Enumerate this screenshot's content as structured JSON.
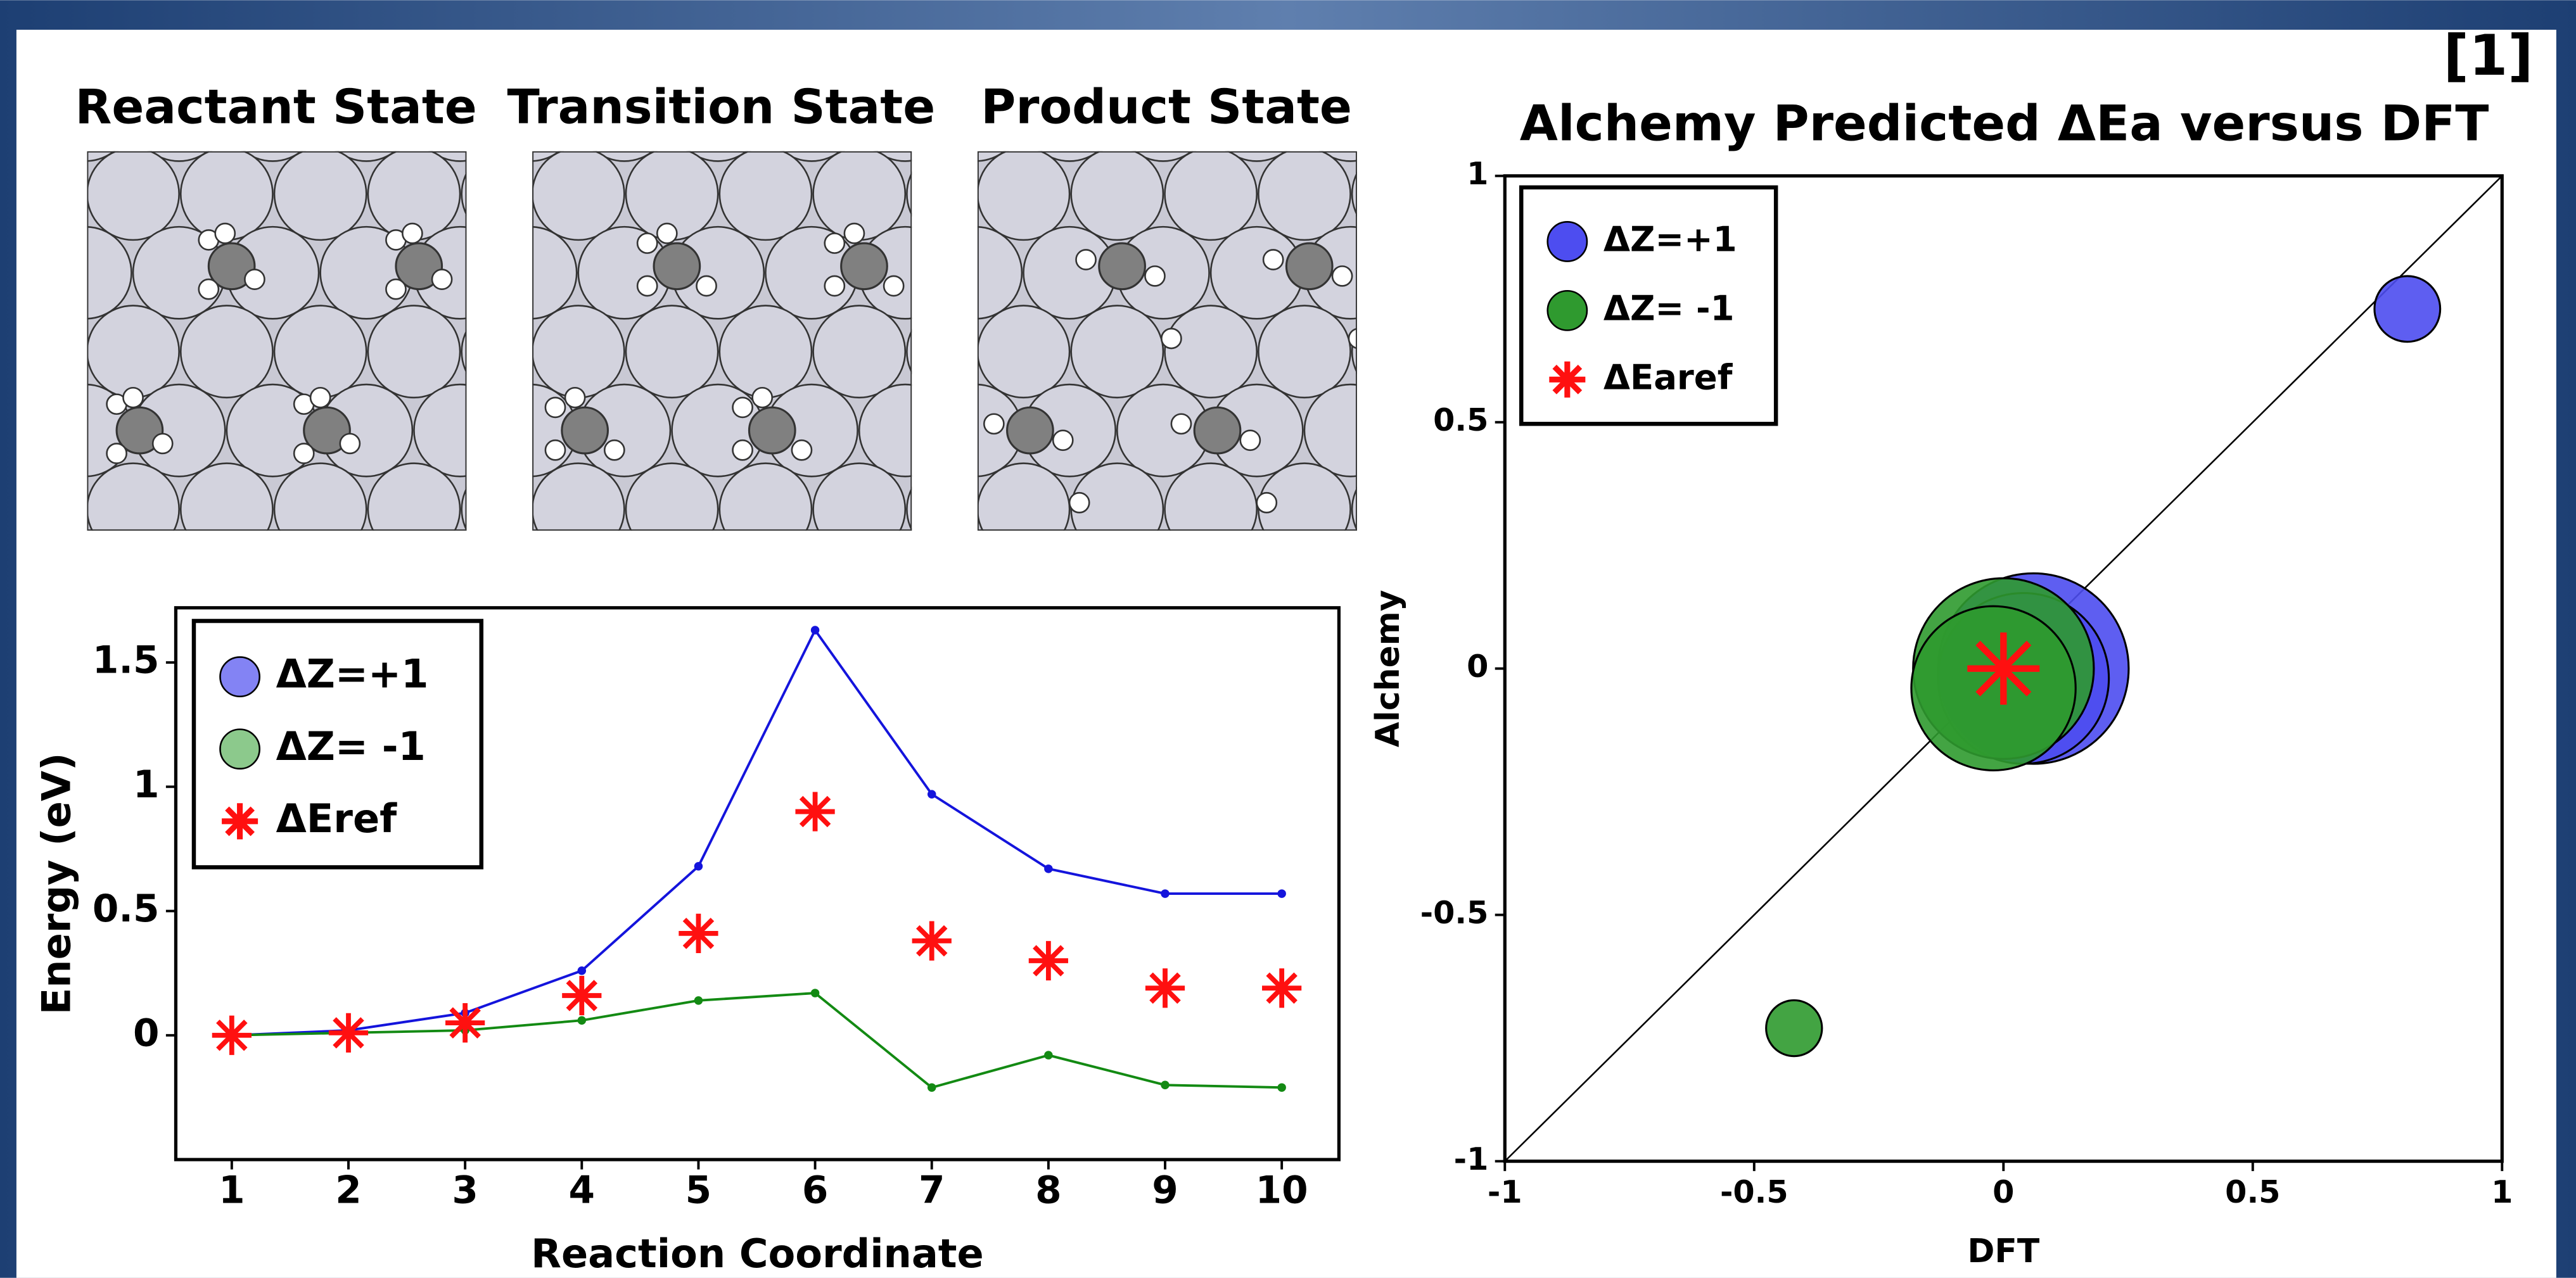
{
  "header": {
    "ref": "[1]",
    "panels": [
      "Reactant State",
      "Transition State",
      "Product State"
    ]
  },
  "chart_data": [
    {
      "type": "line",
      "x": [
        1,
        2,
        3,
        4,
        5,
        6,
        7,
        8,
        9,
        10
      ],
      "xlim": [
        0.52,
        10.49
      ],
      "xticks": [
        1,
        2,
        3,
        4,
        5,
        6,
        7,
        8,
        9,
        10
      ],
      "ylim": [
        -0.5,
        1.72
      ],
      "yticks": [
        0,
        0.5,
        1,
        1.5
      ],
      "xlabel": "Reaction Coordinate",
      "ylabel": "Energy (eV)",
      "legend": "upper left",
      "series": [
        {
          "name": "ΔZ=+1",
          "color": "#1414dc",
          "legend_color": "#8383f4",
          "marker": "dot",
          "values": [
            0,
            0.02,
            0.09,
            0.26,
            0.68,
            1.63,
            0.97,
            0.67,
            0.57,
            0.57
          ]
        },
        {
          "name": "ΔZ= -1",
          "color": "#138a13",
          "legend_color": "#8cc98c",
          "marker": "dot",
          "values": [
            0,
            0.01,
            0.02,
            0.06,
            0.14,
            0.17,
            -0.21,
            -0.08,
            -0.2,
            -0.21
          ]
        },
        {
          "name": "ΔEref",
          "color": "#ff1010",
          "legend_color": "#ff1010",
          "marker": "star",
          "values": [
            0,
            0.01,
            0.05,
            0.16,
            0.41,
            0.9,
            0.38,
            0.3,
            0.19,
            0.19
          ]
        }
      ]
    },
    {
      "type": "scatter",
      "title": "Alchemy Predicted ΔEa versus DFT",
      "xlim": [
        -1,
        1
      ],
      "xticks": [
        -1,
        -0.5,
        0,
        0.5,
        1
      ],
      "ylim": [
        -1,
        1
      ],
      "yticks": [
        -1,
        -0.5,
        0,
        0.5,
        1
      ],
      "xlabel": "DFT",
      "ylabel": "Alchemy",
      "legend": "upper left",
      "series": [
        {
          "name": "ΔZ=+1",
          "color": "#4d4df0",
          "marker": "circle",
          "x": [
            0.81,
            0.06,
            0.04
          ],
          "values": [
            0.73,
            0.0,
            -0.02
          ],
          "sizes": [
            20,
            58,
            52
          ]
        },
        {
          "name": "ΔZ= -1",
          "color": "#2f9a2f",
          "marker": "circle",
          "x": [
            -0.42,
            0.0,
            -0.02
          ],
          "values": [
            -0.73,
            0.0,
            -0.04
          ],
          "sizes": [
            17,
            55,
            50
          ]
        },
        {
          "name": "ΔEaref",
          "color": "#ff1010",
          "marker": "star",
          "x": [
            0
          ],
          "values": [
            0
          ],
          "sizes": [
            22
          ]
        }
      ]
    }
  ]
}
